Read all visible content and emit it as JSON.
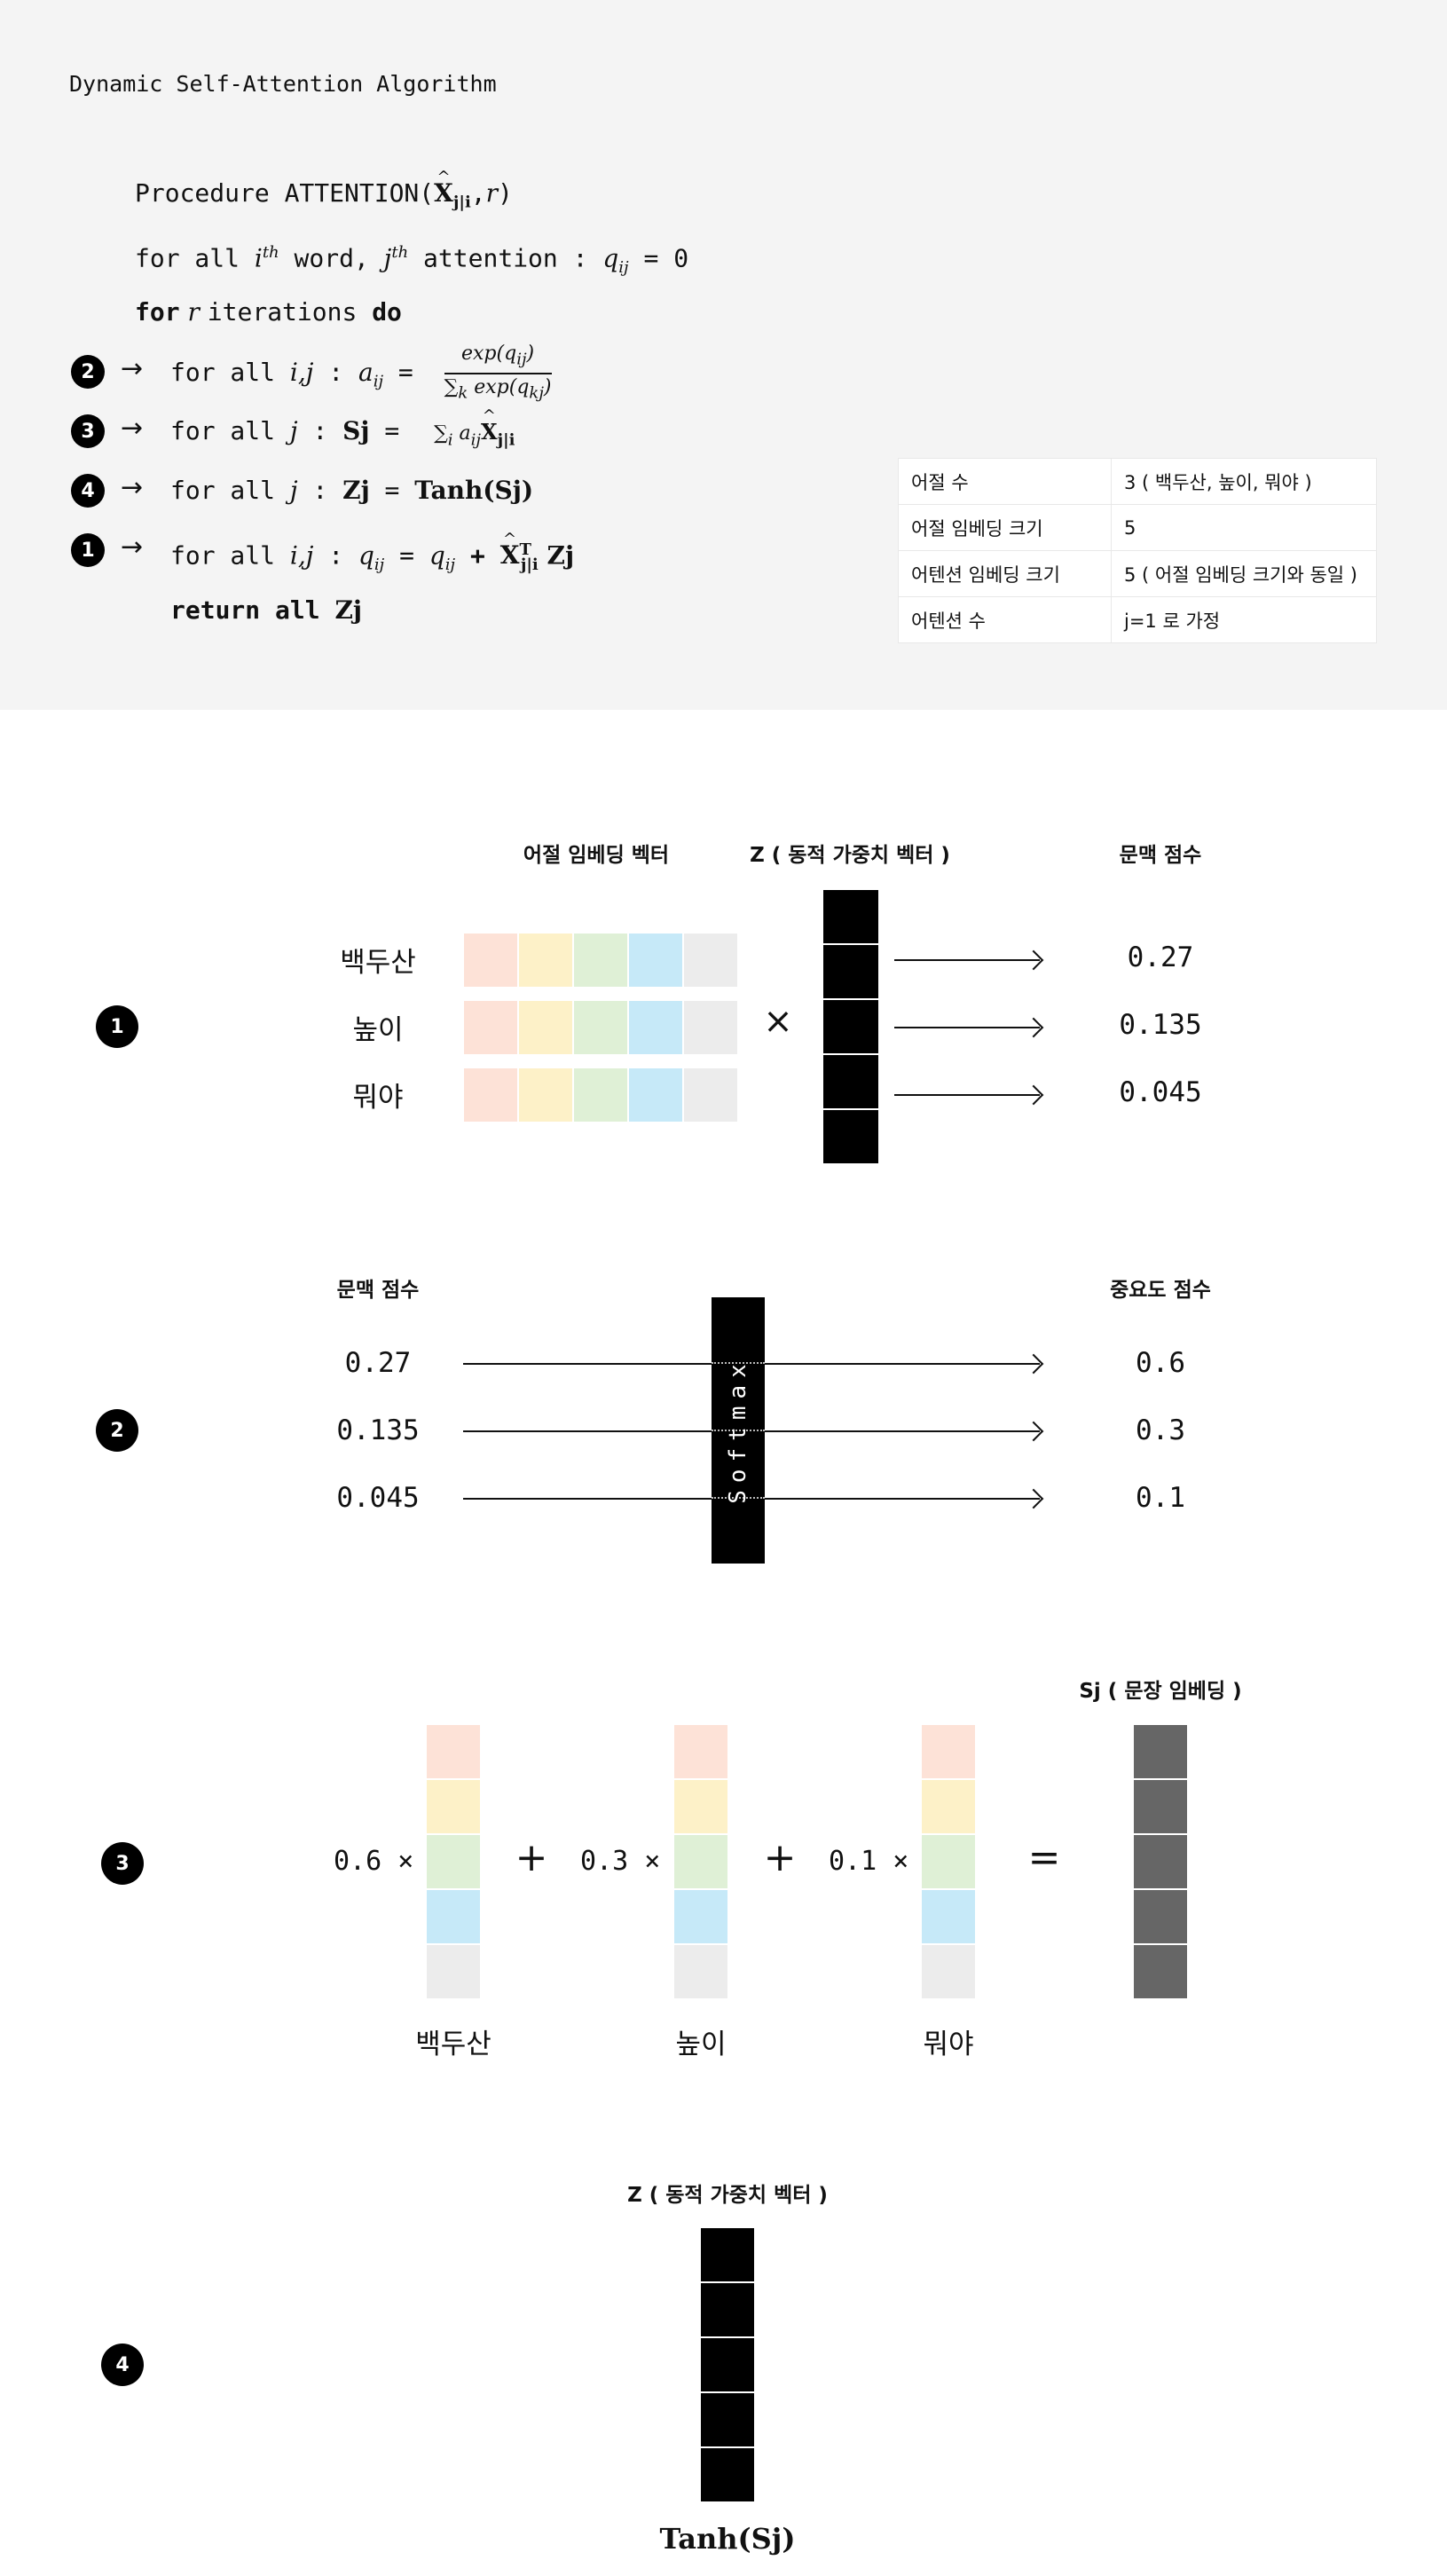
{
  "algorithm": {
    "title": "Dynamic Self-Attention Algorithm",
    "procedure_prefix": "Procedure ATTENTION(",
    "procedure_x": "X",
    "procedure_sub": "j|i",
    "procedure_suffix": ",",
    "procedure_r": "r",
    "procedure_close": ")",
    "init_a": "for all ",
    "init_i": "i",
    "init_th": "th",
    "init_b": " word, ",
    "init_j": "j",
    "init_th2": "th",
    "init_c": " attention : ",
    "init_q": "q",
    "init_qsub": "ij",
    "init_d": " = 0",
    "loop_for": "for",
    "loop_r": " r ",
    "loop_iter": "iterations ",
    "loop_do": "do",
    "s2_a": "for all ",
    "s2_ij": "i,j",
    "s2_b": " : ",
    "s2_a_var": "a",
    "s2_asub": "ij",
    "s2_eq": " =",
    "s2_num": "exp(q",
    "s2_numsub": "ij",
    "s2_numclose": ")",
    "s2_den": "∑",
    "s2_densub": "k",
    "s2_den2": " exp(q",
    "s2_densub2": "kj",
    "s2_denclose": ")",
    "s3_a": "for all ",
    "s3_j": "j",
    "s3_b": " : ",
    "s3_sj": "Sj",
    "s3_eq": " =",
    "s3_sum": "∑",
    "s3_sumsub": "i",
    "s3_a_var": " a",
    "s3_asub": "ij",
    "s3_x": "X",
    "s3_xsub": "j|i",
    "s4_a": "for all ",
    "s4_j": "j",
    "s4_b": " : ",
    "s4_zj": "Zj",
    "s4_eq": " = ",
    "s4_tanh": "Tanh",
    "s4_arg": "(Sj)",
    "s1_a": "for all ",
    "s1_ij": "i,j",
    "s1_b": " : ",
    "s1_q": "q",
    "s1_qsub": "ij",
    "s1_eq": " = ",
    "s1_q2": "q",
    "s1_q2sub": "ij",
    "s1_plus": " + ",
    "s1_x": "X",
    "s1_xsup": "T",
    "s1_xsub": "j|i",
    "s1_zj": " Zj",
    "ret_a": "return all ",
    "ret_zj": "Zj",
    "arrow": "→",
    "badges": [
      "2",
      "3",
      "4",
      "1"
    ]
  },
  "info_table": [
    {
      "key": "어절 수",
      "value": "3 ( 백두산, 높이, 뭐야 )"
    },
    {
      "key": "어절 임베딩 크기",
      "value": "5"
    },
    {
      "key": "어텐션 임베딩 크기",
      "value": "5 ( 어절 임베딩 크기와 동일 )"
    },
    {
      "key": "어텐션 수",
      "value": "j=1 로 가정"
    }
  ],
  "section1": {
    "badge": "1",
    "header_embed": "어절 임베딩 벡터",
    "header_z": "Z ( 동적 가중치 벡터 )",
    "header_score": "문맥 점수",
    "words": [
      "백두산",
      "높이",
      "뭐야"
    ],
    "times": "×",
    "scores": [
      "0.27",
      "0.135",
      "0.045"
    ]
  },
  "section2": {
    "badge": "2",
    "header_in": "문맥 점수",
    "header_out": "중요도 점수",
    "inputs": [
      "0.27",
      "0.135",
      "0.045"
    ],
    "softmax": "Softmax",
    "outputs": [
      "0.6",
      "0.3",
      "0.1"
    ]
  },
  "section3": {
    "badge": "3",
    "header_sj": "Sj ( 문장 임베딩 )",
    "coefs": [
      "0.6 ×",
      "0.3 ×",
      "0.1 ×"
    ],
    "plus": "+",
    "equals": "=",
    "words": [
      "백두산",
      "높이",
      "뭐야"
    ]
  },
  "section4": {
    "badge": "4",
    "header_z": "Z ( 동적 가중치 벡터 )",
    "tanh": "Tanh(Sj)"
  },
  "colors": {
    "embed": [
      "#fde2d7",
      "#fdf1c8",
      "#dff0d6",
      "#c6e9f8",
      "#ececec"
    ],
    "black": "#000000",
    "gray": "#666666",
    "panel": "#f4f4f4"
  }
}
